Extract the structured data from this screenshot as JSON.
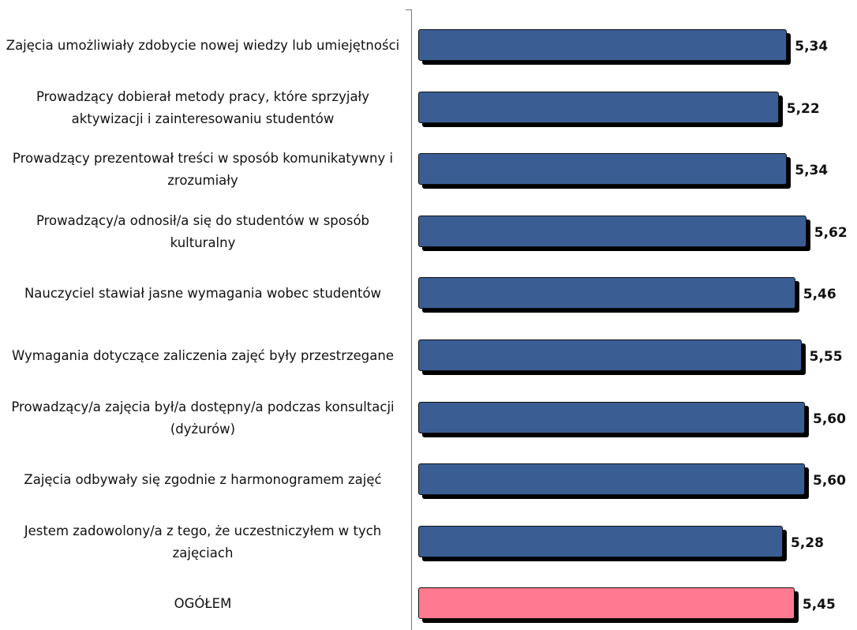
{
  "chart_data": {
    "type": "hbar",
    "categories": [
      "Zajęcia umożliwiały zdobycie nowej wiedzy lub umiejętności",
      "Prowadzący dobierał metody pracy, które sprzyjały aktywizacji i zainteresowaniu studentów",
      "Prowadzący prezentował treści w sposób komunikatywny i zrozumiały",
      "Prowadzący/a odnosił/a się do studentów w sposób kulturalny",
      "Nauczyciel stawiał jasne wymagania wobec studentów",
      "Wymagania dotyczące zaliczenia zajęć były przestrzegane",
      "Prowadzący/a zajęcia był/a dostępny/a podczas konsultacji (dyżurów)",
      "Zajęcia odbywały się zgodnie z harmonogramem zajęć",
      "Jestem zadowolony/a z tego, że uczestniczyłem w tych zajęciach",
      "OGÓŁEM"
    ],
    "values": [
      5.34,
      5.22,
      5.34,
      5.62,
      5.46,
      5.55,
      5.6,
      5.6,
      5.28,
      5.45
    ],
    "value_labels": [
      "5,34",
      "5,22",
      "5,34",
      "5,62",
      "5,46",
      "5,55",
      "5,60",
      "5,60",
      "5,28",
      "5,45"
    ],
    "colors": [
      "#3a5e94",
      "#3a5e94",
      "#3a5e94",
      "#3a5e94",
      "#3a5e94",
      "#3a5e94",
      "#3a5e94",
      "#3a5e94",
      "#3a5e94",
      "#ff7a90"
    ],
    "xlim": [
      0,
      6
    ]
  }
}
